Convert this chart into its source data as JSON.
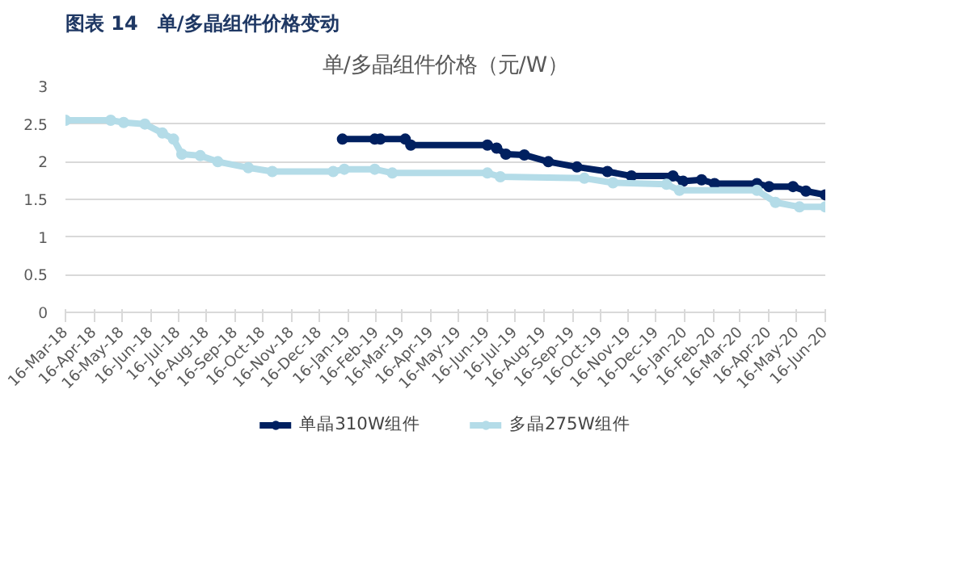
{
  "chart_data": {
    "type": "line",
    "title": "图表 14　单/多晶组件价格变动",
    "subtitle": "单/多晶组件价格（元/W）",
    "ylim": [
      0,
      3
    ],
    "yticks": [
      0,
      0.5,
      1,
      1.5,
      2,
      2.5,
      3
    ],
    "xlim": [
      "2018-03-16",
      "2020-06-16"
    ],
    "xticks": [
      {
        "value": "2018-03-16",
        "label": "16-Mar-18"
      },
      {
        "value": "2018-04-16",
        "label": "16-Apr-18"
      },
      {
        "value": "2018-05-16",
        "label": "16-May-18"
      },
      {
        "value": "2018-06-16",
        "label": "16-Jun-18"
      },
      {
        "value": "2018-07-16",
        "label": "16-Jul-18"
      },
      {
        "value": "2018-08-16",
        "label": "16-Aug-18"
      },
      {
        "value": "2018-09-16",
        "label": "16-Sep-18"
      },
      {
        "value": "2018-10-16",
        "label": "16-Oct-18"
      },
      {
        "value": "2018-11-16",
        "label": "16-Nov-18"
      },
      {
        "value": "2018-12-16",
        "label": "16-Dec-18"
      },
      {
        "value": "2019-01-16",
        "label": "16-Jan-19"
      },
      {
        "value": "2019-02-16",
        "label": "16-Feb-19"
      },
      {
        "value": "2019-03-16",
        "label": "16-Mar-19"
      },
      {
        "value": "2019-04-16",
        "label": "16-Apr-19"
      },
      {
        "value": "2019-05-16",
        "label": "16-May-19"
      },
      {
        "value": "2019-06-16",
        "label": "16-Jun-19"
      },
      {
        "value": "2019-07-16",
        "label": "16-Jul-19"
      },
      {
        "value": "2019-08-16",
        "label": "16-Aug-19"
      },
      {
        "value": "2019-09-16",
        "label": "16-Sep-19"
      },
      {
        "value": "2019-10-16",
        "label": "16-Oct-19"
      },
      {
        "value": "2019-11-16",
        "label": "16-Nov-19"
      },
      {
        "value": "2019-12-16",
        "label": "16-Dec-19"
      },
      {
        "value": "2020-01-16",
        "label": "16-Jan-20"
      },
      {
        "value": "2020-02-16",
        "label": "16-Feb-20"
      },
      {
        "value": "2020-03-16",
        "label": "16-Mar-20"
      },
      {
        "value": "2020-04-16",
        "label": "16-Apr-20"
      },
      {
        "value": "2020-05-16",
        "label": "16-May-20"
      },
      {
        "value": "2020-06-16",
        "label": "16-Jun-20"
      }
    ],
    "grid": "y",
    "legend": "bottom",
    "marker": "circle",
    "line_style": "solid",
    "series": [
      {
        "name": "单晶310W组件",
        "color": "#002060",
        "x": [
          "2019-01-10",
          "2019-02-14",
          "2019-02-20",
          "2019-03-19",
          "2019-03-25",
          "2019-06-16",
          "2019-06-26",
          "2019-07-06",
          "2019-07-26",
          "2019-08-21",
          "2019-09-21",
          "2019-10-24",
          "2019-11-19",
          "2020-01-03",
          "2020-01-14",
          "2020-02-03",
          "2020-02-17",
          "2020-04-03",
          "2020-04-16",
          "2020-05-12",
          "2020-05-26",
          "2020-06-16"
        ],
        "values": [
          2.3,
          2.3,
          2.3,
          2.3,
          2.22,
          2.22,
          2.18,
          2.1,
          2.09,
          2.0,
          1.93,
          1.87,
          1.81,
          1.81,
          1.74,
          1.76,
          1.71,
          1.71,
          1.67,
          1.67,
          1.61,
          1.56
        ]
      },
      {
        "name": "多晶275W组件",
        "color": "#b4dce8",
        "x": [
          "2018-03-16",
          "2018-05-04",
          "2018-05-18",
          "2018-06-10",
          "2018-06-29",
          "2018-07-11",
          "2018-07-20",
          "2018-08-09",
          "2018-08-28",
          "2018-09-30",
          "2018-10-26",
          "2018-12-31",
          "2019-01-12",
          "2019-02-14",
          "2019-03-05",
          "2019-06-16",
          "2019-06-30",
          "2019-09-29",
          "2019-10-30",
          "2019-12-27",
          "2020-01-10",
          "2020-04-03",
          "2020-04-23",
          "2020-05-19",
          "2020-06-16"
        ],
        "values": [
          2.55,
          2.55,
          2.52,
          2.5,
          2.38,
          2.3,
          2.1,
          2.08,
          2.0,
          1.92,
          1.87,
          1.87,
          1.9,
          1.9,
          1.85,
          1.85,
          1.8,
          1.78,
          1.72,
          1.7,
          1.62,
          1.62,
          1.46,
          1.4,
          1.4
        ]
      }
    ]
  }
}
